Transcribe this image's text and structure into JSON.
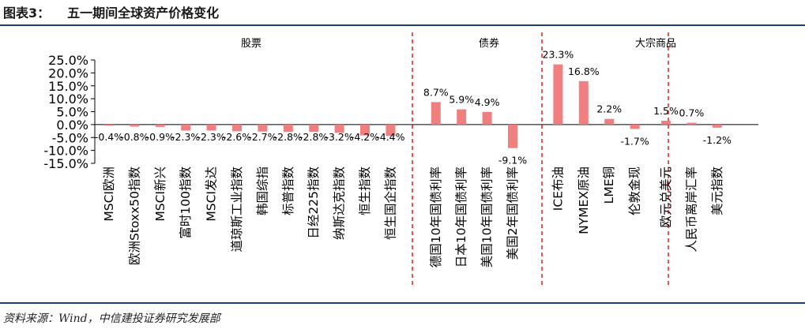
{
  "caption": {
    "figure_number": "图表3：",
    "title": "五一期间全球资产价格变化"
  },
  "source": "资料来源：Wind，中信建投证券研究发展部",
  "colors": {
    "bar": "#f08080",
    "divider": "#e02020",
    "rule": "#1f3d7a"
  },
  "chart_data": {
    "type": "bar",
    "title": "",
    "xlabel": "",
    "ylabel": "",
    "ylim": [
      -15,
      25
    ],
    "yticks": [
      "-15.0%",
      "-10.0%",
      "-5.0%",
      "0.0%",
      "5.0%",
      "10.0%",
      "15.0%",
      "20.0%",
      "25.0%"
    ],
    "ytick_values": [
      -15,
      -10,
      -5,
      0,
      5,
      10,
      15,
      20,
      25
    ],
    "grid": false,
    "legend": "none",
    "groups": [
      {
        "label": "股票",
        "start": 0,
        "end": 11
      },
      {
        "label": "债券",
        "start": 12,
        "end": 15
      },
      {
        "label": "大宗商品",
        "start": 16,
        "end": 19
      },
      {
        "label": "",
        "start": 20,
        "end": 22
      }
    ],
    "categories": [
      "MSCI欧洲",
      "欧洲Stoxx50指数",
      "MSCI新兴",
      "富时100指数",
      "MSCI发达",
      "道琼斯工业指数",
      "韩国综指",
      "标普指数",
      "日经225指数",
      "纳斯达克指数",
      "恒生指数",
      "恒生国企指数",
      "德国10年国债利率",
      "日本10年国债利率",
      "美国10年国债利率",
      "美国2年国债利率",
      "ICE布油",
      "NYMEX原油",
      "LME铜",
      "伦敦金现",
      "欧元兑美元",
      "人民币离岸汇率",
      "美元指数"
    ],
    "values": [
      -0.4,
      -0.8,
      -0.9,
      -2.3,
      -2.3,
      -2.6,
      -2.7,
      -2.8,
      -2.8,
      -3.2,
      -4.2,
      -4.4,
      8.7,
      5.9,
      4.9,
      -9.1,
      23.3,
      16.8,
      2.2,
      -1.7,
      1.5,
      0.7,
      -1.2
    ],
    "data_labels": [
      "-0.4%",
      "-0.8%",
      "-0.9%",
      "-2.3%",
      "-2.3%",
      "-2.6%",
      "-2.7%",
      "-2.8%",
      "-2.8%",
      "-3.2%",
      "-4.2%",
      "-4.4%",
      "8.7%",
      "5.9%",
      "4.9%",
      "-9.1%",
      "23.3%",
      "16.8%",
      "2.2%",
      "-1.7%",
      "1.5%",
      "0.7%",
      "-1.2%"
    ]
  }
}
